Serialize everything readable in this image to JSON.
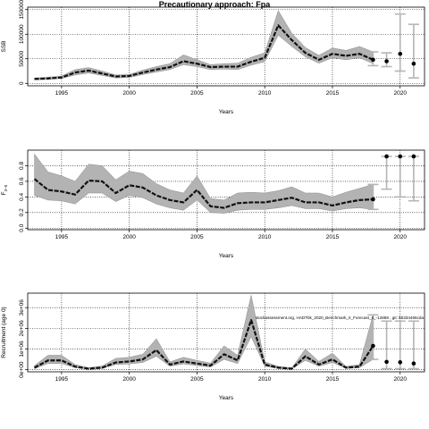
{
  "chart_data": {
    "title": "Precautionary approach: Fpa",
    "annotation": "stockassessment.org, HADTbk_2020_Benchmark_II_Forecast_II_-12868 , git: 5b334465cda",
    "panels": [
      {
        "type": "line",
        "ylabel": "SSB",
        "xlabel": "Years",
        "xlim": [
          1992.5,
          2021.8
        ],
        "ylim": [
          -5000,
          155000
        ],
        "xticks": [
          1995,
          2000,
          2005,
          2010,
          2015,
          2020
        ],
        "yticks": [
          0,
          50000,
          100000,
          150000
        ],
        "ytick_labels": [
          "0",
          "50000",
          "100000",
          "150000"
        ],
        "grid": true,
        "x": [
          1993,
          1994,
          1995,
          1996,
          1997,
          1998,
          1999,
          2000,
          2001,
          2002,
          2003,
          2004,
          2005,
          2006,
          2007,
          2008,
          2009,
          2010,
          2011,
          2012,
          2013,
          2014,
          2015,
          2016,
          2017,
          2018
        ],
        "estimate": [
          9000,
          10000,
          12000,
          22000,
          26000,
          20000,
          14000,
          15000,
          22000,
          28000,
          33000,
          45000,
          40000,
          33000,
          34000,
          34000,
          44000,
          52000,
          118000,
          88000,
          62000,
          48000,
          60000,
          56000,
          60000,
          48000
        ],
        "lower": [
          7000,
          8000,
          10000,
          17000,
          21000,
          16000,
          11000,
          12000,
          18000,
          23000,
          28000,
          38000,
          34000,
          28000,
          29000,
          28000,
          37000,
          44000,
          98000,
          75000,
          54000,
          41000,
          52000,
          48000,
          52000,
          40000
        ],
        "upper": [
          11000,
          12500,
          15000,
          28000,
          32000,
          25000,
          17000,
          18000,
          27000,
          34000,
          40000,
          58000,
          48000,
          38000,
          40000,
          41000,
          53000,
          62000,
          148000,
          102000,
          73000,
          57000,
          72000,
          67000,
          75000,
          64000
        ],
        "forecast": [
          {
            "x": 2018,
            "value": 48000,
            "lower": 36000,
            "upper": 64000
          },
          {
            "x": 2019,
            "value": 45000,
            "lower": 34000,
            "upper": 62000
          },
          {
            "x": 2020,
            "value": 60000,
            "lower": 25000,
            "upper": 141000
          },
          {
            "x": 2021,
            "value": 40000,
            "lower": 11000,
            "upper": 120000
          }
        ]
      },
      {
        "type": "line",
        "ylabel": "F3-5",
        "ylabel_main": "F",
        "ylabel_sub": "3−5",
        "xlabel": "Years",
        "xlim": [
          1992.5,
          2021.8
        ],
        "ylim": [
          -0.02,
          1.0
        ],
        "xticks": [
          1995,
          2000,
          2005,
          2010,
          2015,
          2020
        ],
        "yticks": [
          0.0,
          0.2,
          0.4,
          0.6,
          0.8
        ],
        "ytick_labels": [
          "0.0",
          "0.2",
          "0.4",
          "0.6",
          "0.8"
        ],
        "grid": true,
        "x": [
          1993,
          1994,
          1995,
          1996,
          1997,
          1998,
          1999,
          2000,
          2001,
          2002,
          2003,
          2004,
          2005,
          2006,
          2007,
          2008,
          2009,
          2010,
          2011,
          2012,
          2013,
          2014,
          2015,
          2016,
          2017,
          2018
        ],
        "estimate": [
          0.63,
          0.49,
          0.47,
          0.43,
          0.61,
          0.6,
          0.45,
          0.55,
          0.52,
          0.42,
          0.36,
          0.33,
          0.49,
          0.28,
          0.26,
          0.32,
          0.33,
          0.33,
          0.36,
          0.39,
          0.33,
          0.33,
          0.29,
          0.33,
          0.36,
          0.37
        ],
        "lower": [
          0.42,
          0.36,
          0.35,
          0.31,
          0.45,
          0.45,
          0.34,
          0.42,
          0.39,
          0.31,
          0.26,
          0.23,
          0.36,
          0.2,
          0.19,
          0.23,
          0.24,
          0.24,
          0.26,
          0.29,
          0.25,
          0.25,
          0.22,
          0.25,
          0.26,
          0.24
        ],
        "upper": [
          0.95,
          0.72,
          0.67,
          0.6,
          0.82,
          0.8,
          0.62,
          0.73,
          0.7,
          0.57,
          0.49,
          0.45,
          0.67,
          0.38,
          0.36,
          0.45,
          0.46,
          0.45,
          0.48,
          0.53,
          0.45,
          0.45,
          0.4,
          0.46,
          0.51,
          0.56
        ],
        "forecast": [
          {
            "x": 2018,
            "value": 0.37,
            "lower": 0.24,
            "upper": 0.56
          },
          {
            "x": 2019,
            "value": 0.92,
            "lower": 0.5,
            "upper": 0.92
          },
          {
            "x": 2020,
            "value": 0.92,
            "lower": 0.4,
            "upper": 0.92
          },
          {
            "x": 2021,
            "value": 0.92,
            "lower": 0.35,
            "upper": 0.92
          }
        ]
      },
      {
        "type": "line",
        "ylabel": "Recruitment (age 0)",
        "xlabel": "Years",
        "xlim": [
          1992.5,
          2021.8
        ],
        "ylim": [
          -100000,
          3700000
        ],
        "xticks": [
          1995,
          2000,
          2005,
          2010,
          2015,
          2020
        ],
        "yticks": [
          0,
          1000000,
          2000000,
          3000000
        ],
        "ytick_labels": [
          "0e+00",
          "1e+06",
          "2e+06",
          "3e+06"
        ],
        "grid": true,
        "x": [
          1993,
          1994,
          1995,
          1996,
          1997,
          1998,
          1999,
          2000,
          2001,
          2002,
          2003,
          2004,
          2005,
          2006,
          2007,
          2008,
          2009,
          2010,
          2011,
          2012,
          2013,
          2014,
          2015,
          2016,
          2017,
          2018
        ],
        "estimate": [
          100000,
          450000,
          450000,
          150000,
          50000,
          100000,
          350000,
          400000,
          500000,
          950000,
          250000,
          400000,
          300000,
          200000,
          750000,
          450000,
          2400000,
          250000,
          100000,
          50000,
          650000,
          250000,
          500000,
          100000,
          150000,
          1150000
        ],
        "lower": [
          50000,
          300000,
          300000,
          100000,
          30000,
          60000,
          250000,
          280000,
          350000,
          650000,
          170000,
          280000,
          200000,
          130000,
          500000,
          300000,
          1600000,
          170000,
          60000,
          30000,
          450000,
          170000,
          350000,
          60000,
          100000,
          500000
        ],
        "upper": [
          200000,
          700000,
          700000,
          250000,
          100000,
          180000,
          550000,
          600000,
          750000,
          1500000,
          380000,
          600000,
          450000,
          320000,
          1150000,
          700000,
          3600000,
          380000,
          160000,
          90000,
          1000000,
          400000,
          800000,
          160000,
          250000,
          2650000
        ],
        "forecast": [
          {
            "x": 2018,
            "value": 1150000,
            "lower": 500000,
            "upper": 2650000
          },
          {
            "x": 2019,
            "value": 380000,
            "lower": 50000,
            "upper": 2350000
          },
          {
            "x": 2020,
            "value": 360000,
            "lower": 50000,
            "upper": 2350000
          },
          {
            "x": 2021,
            "value": 300000,
            "lower": 50000,
            "upper": 2350000
          }
        ]
      }
    ]
  }
}
